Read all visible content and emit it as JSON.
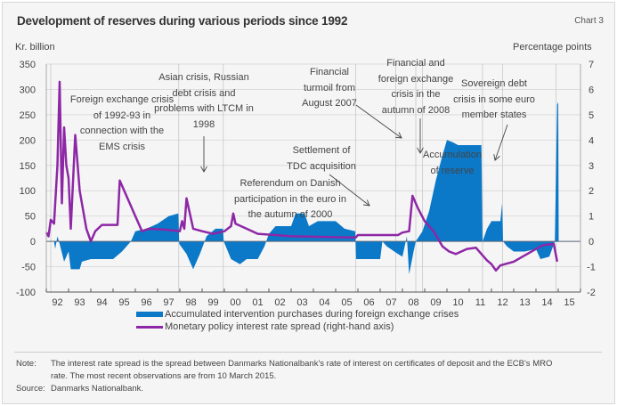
{
  "header": {
    "title": "Development of reserves during various periods since 1992",
    "chart_number": "Chart 3"
  },
  "chart_data": {
    "type": "area+line",
    "title": "Development of reserves during various periods since 1992",
    "ylabel_left": "Kr. billion",
    "ylabel_right": "Percentage points",
    "ylim_left": [
      -100,
      350
    ],
    "ylim_right": [
      -2,
      7
    ],
    "yticks_left": [
      "350",
      "300",
      "250",
      "200",
      "150",
      "100",
      "50",
      "0",
      "-50",
      "-100"
    ],
    "yticks_right": [
      "7",
      "6",
      "5",
      "4",
      "3",
      "2",
      "1",
      "0",
      "-1",
      "-2"
    ],
    "xlim": [
      1992,
      2016
    ],
    "xticks": [
      "92",
      "93",
      "94",
      "95",
      "96",
      "97",
      "98",
      "99",
      "00",
      "01",
      "02",
      "03",
      "04",
      "05",
      "06",
      "07",
      "08",
      "09",
      "10",
      "11",
      "12",
      "13",
      "14",
      "15"
    ],
    "grid": "horizontal",
    "event_lines": [
      1992.2,
      1997.95,
      1999.95,
      2005.9,
      2007.7,
      2008.6,
      2008.9,
      2011.6,
      2012.5,
      2014.9
    ],
    "colors": {
      "area": "#0b78c8",
      "line": "#8e27a6"
    },
    "series": [
      {
        "name": "Accumulated intervention purchases during foreign exchange crises",
        "kind": "area",
        "axis": "left",
        "points": [
          [
            1992.0,
            0
          ],
          [
            1992.35,
            0
          ],
          [
            1992.4,
            -15
          ],
          [
            1992.5,
            10
          ],
          [
            1992.6,
            -5
          ],
          [
            1992.8,
            -40
          ],
          [
            1993.0,
            -20
          ],
          [
            1993.1,
            -55
          ],
          [
            1993.5,
            -55
          ],
          [
            1993.6,
            -40
          ],
          [
            1994.0,
            -35
          ],
          [
            1995.0,
            -35
          ],
          [
            1995.4,
            -20
          ],
          [
            1995.8,
            0
          ],
          [
            1996.0,
            20
          ],
          [
            1996.5,
            25
          ],
          [
            1997.0,
            35
          ],
          [
            1997.5,
            50
          ],
          [
            1997.93,
            55
          ],
          [
            1997.97,
            -5
          ],
          [
            1998.3,
            -25
          ],
          [
            1998.6,
            -55
          ],
          [
            1998.9,
            -25
          ],
          [
            1999.2,
            10
          ],
          [
            1999.6,
            25
          ],
          [
            1999.93,
            25
          ],
          [
            1999.97,
            0
          ],
          [
            2000.3,
            -35
          ],
          [
            2000.7,
            -45
          ],
          [
            2001.0,
            -35
          ],
          [
            2001.5,
            -35
          ],
          [
            2001.8,
            -10
          ],
          [
            2002.0,
            15
          ],
          [
            2002.3,
            30
          ],
          [
            2003.0,
            30
          ],
          [
            2003.2,
            55
          ],
          [
            2003.6,
            55
          ],
          [
            2003.8,
            30
          ],
          [
            2004.2,
            40
          ],
          [
            2005.0,
            40
          ],
          [
            2005.4,
            25
          ],
          [
            2005.88,
            20
          ],
          [
            2005.92,
            -35
          ],
          [
            2007.0,
            -35
          ],
          [
            2007.1,
            0
          ],
          [
            2007.3,
            -10
          ],
          [
            2007.8,
            -25
          ],
          [
            2008.0,
            -30
          ],
          [
            2008.2,
            10
          ],
          [
            2008.3,
            -65
          ],
          [
            2008.5,
            -20
          ],
          [
            2008.6,
            0
          ],
          [
            2008.9,
            20
          ],
          [
            2009.2,
            60
          ],
          [
            2009.5,
            120
          ],
          [
            2009.8,
            170
          ],
          [
            2010.0,
            200
          ],
          [
            2010.3,
            195
          ],
          [
            2010.5,
            190
          ],
          [
            2011.55,
            190
          ],
          [
            2011.6,
            0
          ],
          [
            2011.8,
            25
          ],
          [
            2012.0,
            40
          ],
          [
            2012.4,
            40
          ],
          [
            2012.48,
            75
          ],
          [
            2012.52,
            0
          ],
          [
            2012.7,
            -10
          ],
          [
            2013.0,
            -20
          ],
          [
            2013.5,
            -20
          ],
          [
            2014.0,
            -15
          ],
          [
            2014.2,
            -35
          ],
          [
            2014.6,
            -30
          ],
          [
            2014.85,
            0
          ],
          [
            2014.95,
            270
          ],
          [
            2015.0,
            275
          ],
          [
            2015.02,
            0
          ]
        ]
      },
      {
        "name": "Monetary policy interest rate spread (right-hand axis)",
        "kind": "line",
        "axis": "right",
        "points": [
          [
            1992.0,
            0.35
          ],
          [
            1992.1,
            0.2
          ],
          [
            1992.2,
            0.85
          ],
          [
            1992.35,
            0.7
          ],
          [
            1992.5,
            3.0
          ],
          [
            1992.6,
            6.3
          ],
          [
            1992.7,
            1.5
          ],
          [
            1992.8,
            4.5
          ],
          [
            1992.9,
            3.0
          ],
          [
            1993.0,
            2.5
          ],
          [
            1993.1,
            0.5
          ],
          [
            1993.3,
            4.2
          ],
          [
            1993.5,
            2.0
          ],
          [
            1993.8,
            0.5
          ],
          [
            1994.0,
            0.0
          ],
          [
            1994.2,
            0.4
          ],
          [
            1994.5,
            0.65
          ],
          [
            1995.2,
            0.65
          ],
          [
            1995.3,
            2.4
          ],
          [
            1995.6,
            1.8
          ],
          [
            1996.0,
            1.0
          ],
          [
            1996.3,
            0.4
          ],
          [
            1996.6,
            0.5
          ],
          [
            1997.5,
            0.45
          ],
          [
            1998.0,
            0.4
          ],
          [
            1998.1,
            0.8
          ],
          [
            1998.2,
            0.5
          ],
          [
            1998.3,
            1.7
          ],
          [
            1998.6,
            0.5
          ],
          [
            1999.0,
            0.4
          ],
          [
            1999.5,
            0.3
          ],
          [
            2000.0,
            0.4
          ],
          [
            2000.3,
            0.6
          ],
          [
            2000.4,
            1.1
          ],
          [
            2000.5,
            0.7
          ],
          [
            2001.0,
            0.5
          ],
          [
            2001.5,
            0.3
          ],
          [
            2002.3,
            0.25
          ],
          [
            2003.0,
            0.2
          ],
          [
            2005.9,
            0.15
          ],
          [
            2006.0,
            0.25
          ],
          [
            2007.8,
            0.25
          ],
          [
            2008.0,
            0.35
          ],
          [
            2008.3,
            0.4
          ],
          [
            2008.45,
            1.8
          ],
          [
            2008.7,
            1.3
          ],
          [
            2009.0,
            0.8
          ],
          [
            2009.4,
            0.4
          ],
          [
            2009.8,
            -0.2
          ],
          [
            2010.1,
            -0.4
          ],
          [
            2010.4,
            -0.5
          ],
          [
            2010.9,
            -0.3
          ],
          [
            2011.3,
            -0.25
          ],
          [
            2011.5,
            -0.45
          ],
          [
            2011.8,
            -0.75
          ],
          [
            2012.0,
            -0.9
          ],
          [
            2012.2,
            -1.15
          ],
          [
            2012.4,
            -0.95
          ],
          [
            2013.0,
            -0.8
          ],
          [
            2013.4,
            -0.6
          ],
          [
            2013.9,
            -0.35
          ],
          [
            2014.3,
            -0.15
          ],
          [
            2014.8,
            -0.1
          ],
          [
            2014.95,
            -0.8
          ]
        ]
      }
    ],
    "annotations": {
      "ems": "Foreign exchange crisis|of 1992-93 in|connection with the|EMS crisis",
      "asian": "Asian crisis, Russian|debt crisis and|problems with LTCM in|1998",
      "referendum": "Referendum on Danish|participation in the euro in|the autumn of 2000",
      "turmoil": "Financial|turmoil from|August 2007",
      "tdc": "Settlement of|TDC acquisition",
      "fin2008": "Financial and|foreign exchange|crisis in the|autumn of 2008",
      "accumulation": "Accumulation|of reserve",
      "sovereign": "Sovereign debt|crisis in some euro|member states"
    },
    "legend": "bottom"
  },
  "footer": {
    "note_label": "Note:",
    "note_text_1": "The interest rate spread is the spread between Danmarks Nationalbank's rate of interest on certificates of deposit and the ECB's MRO",
    "note_text_2": "rate. The most recent observations are from 10 March 2015.",
    "source_label": "Source:",
    "source_text": "Danmarks Nationalbank."
  }
}
